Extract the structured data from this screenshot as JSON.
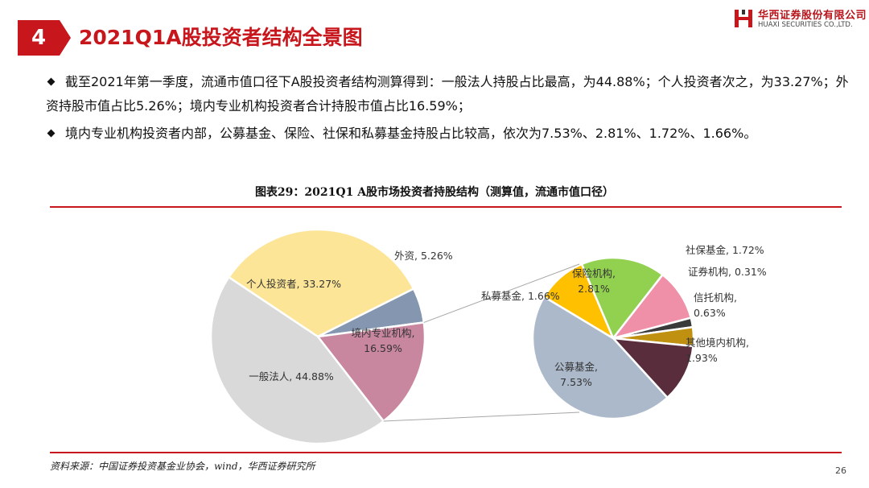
{
  "header": {
    "section_number": "4",
    "title": "2021Q1A股投资者结构全景图"
  },
  "logo": {
    "name_cn": "华西证券股份有限公司",
    "name_en": "HUAXI SECURITIES CO.,LTD."
  },
  "bullets": [
    "截至2021年第一季度，流通市值口径下A股投资者结构测算得到：一般法人持股占比最高，为44.88%；个人投资者次之，为33.27%；外资持股市值占比5.26%；境内专业机构投资者合计持股市值占比16.59%；",
    "境内专业机构投资者内部，公募基金、保险、社保和私募基金持股占比较高，依次为7.53%、2.81%、1.72%、1.66%。"
  ],
  "source": "资料来源：中国证券投资基金业协会，wind，华西证券研究所",
  "page_number": "26",
  "chart_data": {
    "type": "pie",
    "title": "图表29：2021Q1 A股市场投资者持股结构（测算值，流通市值口径）",
    "main_pie": {
      "slices": [
        {
          "name": "个人投资者",
          "value": 33.27,
          "label": "个人投资者, 33.27%",
          "color": "#fde597"
        },
        {
          "name": "外资",
          "value": 5.26,
          "label": "外资, 5.26%",
          "color": "#8496b0"
        },
        {
          "name": "境内专业机构",
          "value": 16.59,
          "label": "境内专业机构, 16.59%",
          "color": "#c9879f"
        },
        {
          "name": "一般法人",
          "value": 44.88,
          "label": "一般法人, 44.88%",
          "color": "#d9d9d9"
        }
      ]
    },
    "breakdown_of": "境内专业机构",
    "sub_pie": {
      "slices": [
        {
          "name": "保险机构",
          "value": 2.81,
          "label": "保险机构, 2.81%",
          "color": "#92d050"
        },
        {
          "name": "社保基金",
          "value": 1.72,
          "label": "社保基金, 1.72%",
          "color": "#f090a8"
        },
        {
          "name": "证券机构",
          "value": 0.31,
          "label": "证券机构, 0.31%",
          "color": "#3a3a3a"
        },
        {
          "name": "信托机构",
          "value": 0.63,
          "label": "信托机构, 0.63%",
          "color": "#c09010"
        },
        {
          "name": "其他境内机构",
          "value": 1.93,
          "label": "其他境内机构, 1.93%",
          "color": "#5a2d3c"
        },
        {
          "name": "公募基金",
          "value": 7.53,
          "label": "公募基金, 7.53%",
          "color": "#acb9ca"
        },
        {
          "name": "私募基金",
          "value": 1.66,
          "label": "私募基金, 1.66%",
          "color": "#ffc000"
        }
      ]
    }
  }
}
